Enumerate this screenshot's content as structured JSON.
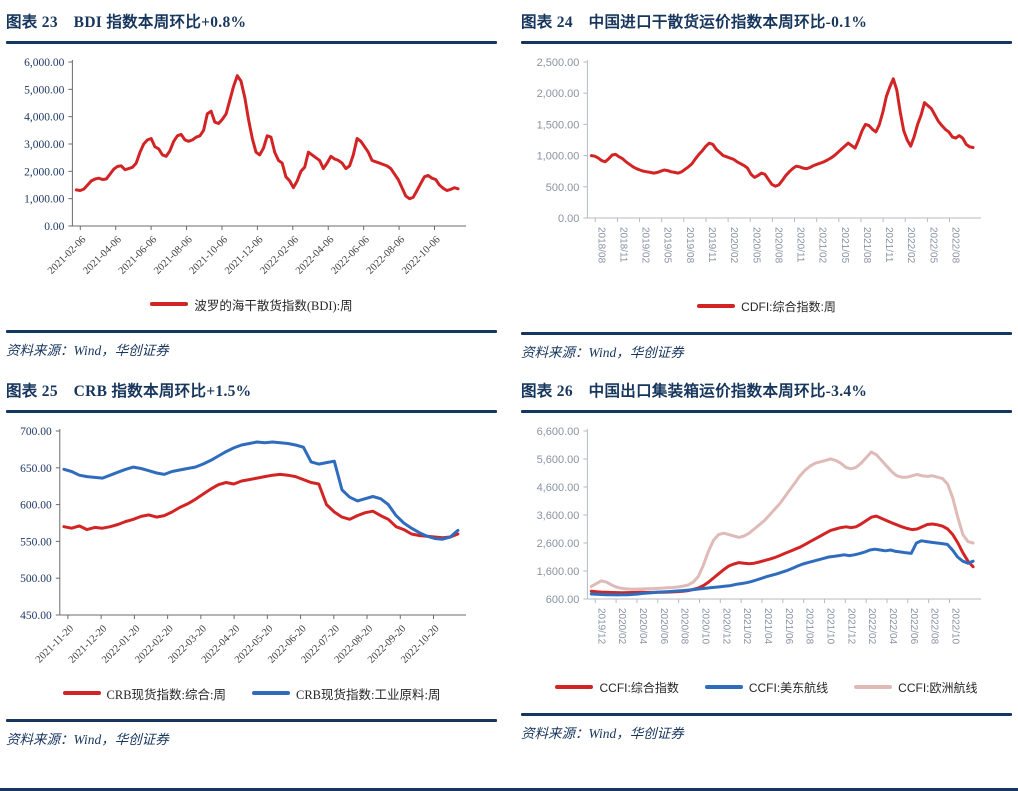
{
  "page": {
    "background": "#FFFFFF",
    "accent_navy": "#17365D"
  },
  "chart_data": [
    {
      "id": "fig23",
      "type": "line",
      "title": "图表 23　BDI 指数本周环比+0.8%",
      "source": "资料来源：Wind，华创证券",
      "x_label_style": "diagonal",
      "ylim": [
        0,
        6000
      ],
      "y_ticks": [
        0,
        1000,
        2000,
        3000,
        4000,
        5000,
        6000
      ],
      "y_tick_labels": [
        "0.00",
        "1,000.00",
        "2,000.00",
        "3,000.00",
        "4,000.00",
        "5,000.00",
        "6,000.00"
      ],
      "x_labels": [
        "2021-02-06",
        "2021-04-06",
        "2021-06-06",
        "2021-08-06",
        "2021-10-06",
        "2021-12-06",
        "2022-02-06",
        "2022-04-06",
        "2022-06-06",
        "2022-08-06",
        "2022-10-06"
      ],
      "grid": false,
      "legend_position": "bottom",
      "series": [
        {
          "name": "波罗的海干散货指数(BDI):周",
          "color": "#D22424",
          "values": [
            1320,
            1300,
            1350,
            1500,
            1650,
            1720,
            1750,
            1700,
            1720,
            1900,
            2080,
            2180,
            2200,
            2060,
            2100,
            2150,
            2300,
            2700,
            3000,
            3150,
            3200,
            2900,
            2820,
            2600,
            2550,
            2750,
            3100,
            3300,
            3350,
            3150,
            3100,
            3150,
            3250,
            3300,
            3500,
            4100,
            4200,
            3800,
            3750,
            3900,
            4100,
            4600,
            5100,
            5500,
            5300,
            4700,
            3900,
            3200,
            2700,
            2600,
            2850,
            3300,
            3250,
            2700,
            2400,
            2300,
            1800,
            1650,
            1400,
            1650,
            2000,
            2150,
            2700,
            2600,
            2500,
            2400,
            2100,
            2300,
            2550,
            2450,
            2400,
            2300,
            2100,
            2200,
            2600,
            3200,
            3100,
            2900,
            2700,
            2400,
            2350,
            2300,
            2250,
            2200,
            2100,
            1900,
            1700,
            1400,
            1100,
            1000,
            1050,
            1300,
            1550,
            1800,
            1850,
            1750,
            1700,
            1500,
            1380,
            1300,
            1340,
            1400,
            1360
          ]
        }
      ]
    },
    {
      "id": "fig24",
      "type": "line",
      "title": "图表 24　中国进口干散货运价指数本周环比-0.1%",
      "source": "资料来源：Wind，华创证券",
      "x_label_style": "vertical",
      "ylim": [
        0,
        2500
      ],
      "y_ticks": [
        0,
        500,
        1000,
        1500,
        2000,
        2500
      ],
      "y_tick_labels": [
        "0.00",
        "500.00",
        "1,000.00",
        "1,500.00",
        "2,000.00",
        "2,500.00"
      ],
      "x_labels": [
        "2018/08",
        "2018/11",
        "2019/02",
        "2019/05",
        "2019/08",
        "2019/11",
        "2020/02",
        "2020/05",
        "2020/08",
        "2020/11",
        "2021/02",
        "2021/05",
        "2021/08",
        "2021/11",
        "2022/02",
        "2022/05",
        "2022/08"
      ],
      "grid": false,
      "legend_position": "bottom",
      "series": [
        {
          "name": "CDFI:综合指数:周",
          "color": "#D22424",
          "values": [
            1000,
            990,
            960,
            920,
            900,
            950,
            1010,
            1020,
            980,
            950,
            900,
            860,
            820,
            790,
            770,
            750,
            740,
            730,
            720,
            730,
            750,
            770,
            760,
            740,
            730,
            720,
            740,
            780,
            820,
            870,
            950,
            1020,
            1080,
            1150,
            1200,
            1180,
            1100,
            1050,
            1000,
            980,
            960,
            940,
            900,
            870,
            840,
            800,
            700,
            650,
            680,
            720,
            700,
            620,
            540,
            510,
            530,
            600,
            680,
            740,
            790,
            830,
            820,
            800,
            790,
            810,
            840,
            860,
            880,
            900,
            930,
            960,
            1000,
            1050,
            1100,
            1150,
            1200,
            1160,
            1120,
            1250,
            1400,
            1500,
            1480,
            1420,
            1380,
            1500,
            1700,
            1950,
            2100,
            2230,
            2050,
            1700,
            1400,
            1250,
            1150,
            1300,
            1500,
            1650,
            1850,
            1800,
            1750,
            1650,
            1550,
            1480,
            1420,
            1380,
            1300,
            1280,
            1320,
            1280,
            1180,
            1140,
            1130
          ]
        }
      ]
    },
    {
      "id": "fig25",
      "type": "line",
      "title": "图表 25　CRB 指数本周环比+1.5%",
      "source": "资料来源：Wind，华创证券",
      "x_label_style": "diagonal",
      "ylim": [
        450,
        700
      ],
      "y_ticks": [
        450,
        500,
        550,
        600,
        650,
        700
      ],
      "y_tick_labels": [
        "450.00",
        "500.00",
        "550.00",
        "600.00",
        "650.00",
        "700.00"
      ],
      "x_labels": [
        "2021-11-20",
        "2021-12-20",
        "2022-01-20",
        "2022-02-20",
        "2022-03-20",
        "2022-04-20",
        "2022-05-20",
        "2022-06-20",
        "2022-07-20",
        "2022-08-20",
        "2022-09-20",
        "2022-10-20"
      ],
      "grid": false,
      "legend_position": "bottom",
      "series": [
        {
          "name": "CRB现货指数:综合:周",
          "color": "#D22424",
          "values": [
            570,
            568,
            571,
            566,
            569,
            568,
            570,
            573,
            577,
            580,
            584,
            586,
            583,
            585,
            590,
            596,
            601,
            607,
            614,
            621,
            627,
            630,
            628,
            632,
            634,
            636,
            638,
            640,
            641,
            640,
            638,
            634,
            630,
            628,
            600,
            590,
            583,
            580,
            585,
            589,
            591,
            585,
            580,
            570,
            566,
            560,
            558,
            557,
            556,
            555,
            556,
            560
          ]
        },
        {
          "name": "CRB现货指数:工业原料:周",
          "color": "#2F6CBE",
          "values": [
            648,
            645,
            640,
            638,
            637,
            636,
            640,
            644,
            648,
            651,
            649,
            646,
            643,
            641,
            645,
            647,
            649,
            651,
            655,
            660,
            666,
            672,
            677,
            681,
            683,
            685,
            684,
            685,
            684,
            683,
            681,
            678,
            658,
            655,
            657,
            659,
            620,
            610,
            605,
            608,
            611,
            608,
            600,
            585,
            575,
            568,
            562,
            557,
            554,
            553,
            556,
            565
          ]
        }
      ]
    },
    {
      "id": "fig26",
      "type": "line",
      "title": "图表 26　中国出口集装箱运价指数本周环比-3.4%",
      "source": "资料来源：Wind，华创证券",
      "x_label_style": "vertical",
      "ylim": [
        600,
        6600
      ],
      "y_ticks": [
        600,
        1600,
        2600,
        3600,
        4600,
        5600,
        6600
      ],
      "y_tick_labels": [
        "600.00",
        "1,600.00",
        "2,600.00",
        "3,600.00",
        "4,600.00",
        "5,600.00",
        "6,600.00"
      ],
      "x_labels": [
        "2019/12",
        "2020/02",
        "2020/04",
        "2020/06",
        "2020/08",
        "2020/10",
        "2020/12",
        "2021/02",
        "2021/04",
        "2021/06",
        "2021/08",
        "2021/10",
        "2021/12",
        "2022/02",
        "2022/04",
        "2022/06",
        "2022/08",
        "2022/10"
      ],
      "grid": false,
      "legend_position": "bottom",
      "series": [
        {
          "name": "CCFI:综合指数",
          "color": "#D22424",
          "values": [
            880,
            860,
            845,
            838,
            832,
            828,
            825,
            828,
            832,
            835,
            838,
            836,
            834,
            838,
            842,
            848,
            855,
            865,
            880,
            900,
            940,
            990,
            1080,
            1200,
            1350,
            1500,
            1650,
            1780,
            1850,
            1900,
            1880,
            1860,
            1880,
            1920,
            1970,
            2020,
            2080,
            2150,
            2230,
            2300,
            2380,
            2450,
            2550,
            2650,
            2750,
            2850,
            2950,
            3050,
            3100,
            3150,
            3180,
            3150,
            3180,
            3280,
            3400,
            3520,
            3560,
            3480,
            3400,
            3320,
            3250,
            3180,
            3120,
            3080,
            3100,
            3180,
            3260,
            3280,
            3250,
            3200,
            3100,
            2900,
            2600,
            2250,
            1950,
            1750
          ]
        },
        {
          "name": "CCFI:美东航线",
          "color": "#2F6CBE",
          "values": [
            780,
            770,
            760,
            755,
            750,
            748,
            750,
            755,
            765,
            780,
            800,
            815,
            830,
            845,
            855,
            865,
            875,
            890,
            905,
            920,
            940,
            960,
            980,
            1000,
            1020,
            1040,
            1060,
            1080,
            1120,
            1150,
            1180,
            1220,
            1280,
            1340,
            1400,
            1450,
            1500,
            1560,
            1620,
            1700,
            1780,
            1850,
            1900,
            1950,
            2000,
            2050,
            2100,
            2120,
            2150,
            2180,
            2150,
            2180,
            2220,
            2280,
            2350,
            2380,
            2350,
            2320,
            2350,
            2300,
            2280,
            2250,
            2230,
            2600,
            2680,
            2650,
            2620,
            2600,
            2580,
            2550,
            2350,
            2100,
            1950,
            1880,
            1950
          ]
        },
        {
          "name": "CCFI:欧洲航线",
          "color": "#DFBBB8",
          "values": [
            1050,
            1150,
            1250,
            1200,
            1100,
            1020,
            980,
            960,
            950,
            955,
            960,
            965,
            970,
            980,
            990,
            1000,
            1010,
            1030,
            1060,
            1100,
            1200,
            1400,
            1800,
            2300,
            2700,
            2900,
            2950,
            2900,
            2850,
            2800,
            2850,
            2950,
            3100,
            3250,
            3400,
            3600,
            3800,
            4000,
            4250,
            4500,
            4750,
            5000,
            5200,
            5350,
            5450,
            5500,
            5550,
            5600,
            5550,
            5450,
            5300,
            5250,
            5300,
            5450,
            5650,
            5850,
            5750,
            5550,
            5350,
            5150,
            5000,
            4950,
            4950,
            5000,
            5050,
            5000,
            4980,
            5000,
            4950,
            4900,
            4700,
            4200,
            3500,
            2900,
            2650,
            2600
          ]
        }
      ]
    }
  ]
}
